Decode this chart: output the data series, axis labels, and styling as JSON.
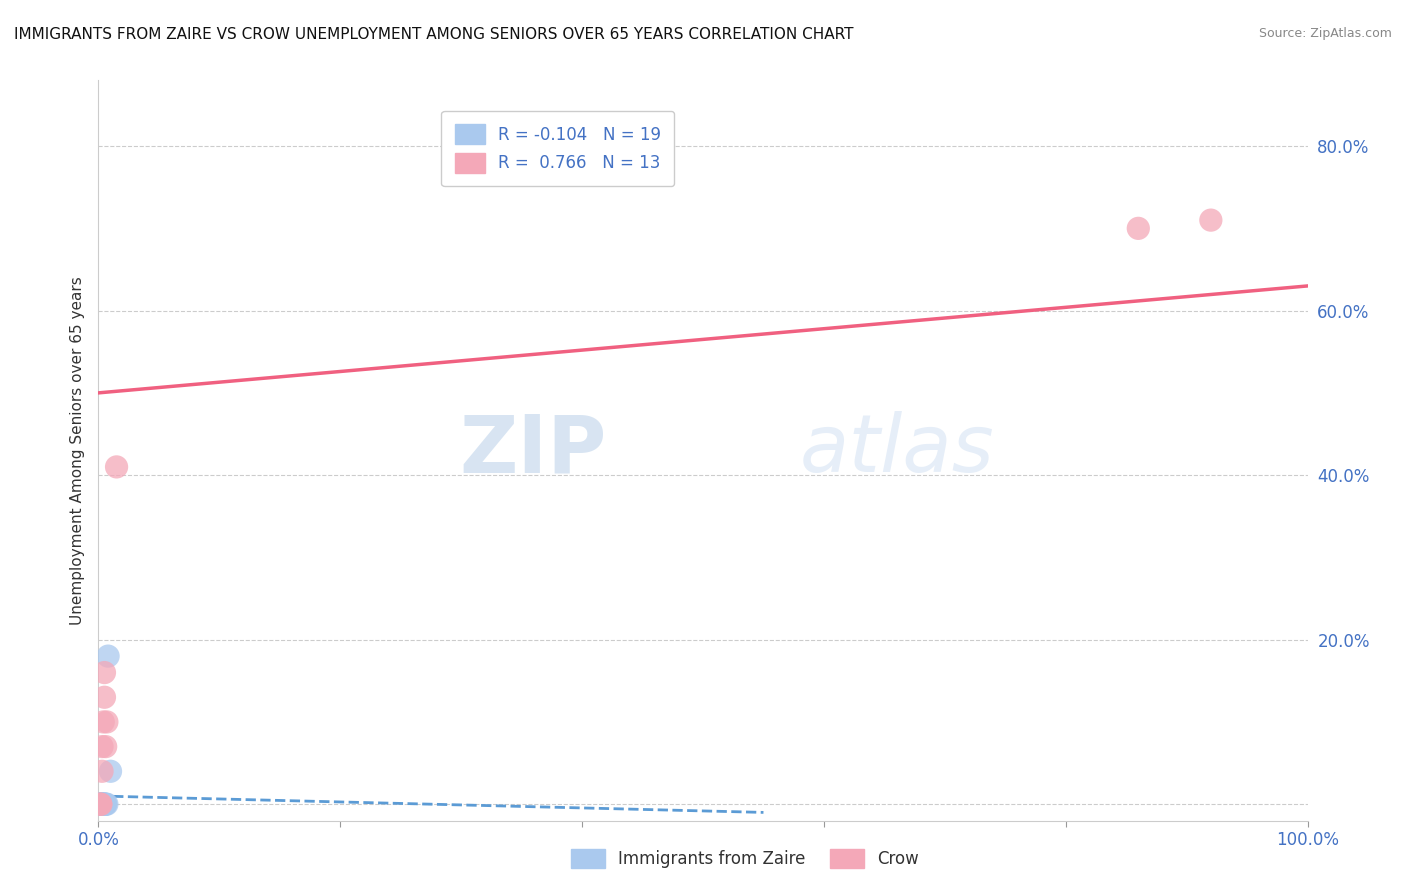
{
  "title": "IMMIGRANTS FROM ZAIRE VS CROW UNEMPLOYMENT AMONG SENIORS OVER 65 YEARS CORRELATION CHART",
  "source": "Source: ZipAtlas.com",
  "ylabel": "Unemployment Among Seniors over 65 years",
  "xlim": [
    0.0,
    1.0
  ],
  "ylim": [
    -0.02,
    0.88
  ],
  "xticks": [
    0.0,
    0.2,
    0.4,
    0.6,
    0.8,
    1.0
  ],
  "yticks": [
    0.0,
    0.2,
    0.4,
    0.6,
    0.8
  ],
  "xticklabels": [
    "0.0%",
    "",
    "",
    "",
    "",
    "100.0%"
  ],
  "yticklabels": [
    "",
    "20.0%",
    "40.0%",
    "60.0%",
    "80.0%"
  ],
  "blue_points_x": [
    0.001,
    0.001,
    0.001,
    0.002,
    0.002,
    0.002,
    0.003,
    0.003,
    0.003,
    0.004,
    0.004,
    0.005,
    0.005,
    0.005,
    0.006,
    0.006,
    0.007,
    0.008,
    0.01
  ],
  "blue_points_y": [
    0.0,
    0.0,
    0.0,
    0.0,
    0.0,
    0.0,
    0.0,
    0.0,
    0.0,
    0.0,
    0.0,
    0.0,
    0.0,
    0.0,
    0.0,
    0.0,
    0.0,
    0.18,
    0.04
  ],
  "pink_points_x": [
    0.001,
    0.002,
    0.002,
    0.003,
    0.003,
    0.004,
    0.005,
    0.005,
    0.006,
    0.007,
    0.015,
    0.86,
    0.92
  ],
  "pink_points_y": [
    0.0,
    0.0,
    0.0,
    0.04,
    0.07,
    0.1,
    0.13,
    0.16,
    0.07,
    0.1,
    0.41,
    0.7,
    0.71
  ],
  "blue_color": "#aac9ee",
  "pink_color": "#f4a8b8",
  "blue_line_color": "#5b9bd5",
  "pink_line_color": "#f06080",
  "R_blue": -0.104,
  "N_blue": 19,
  "R_pink": 0.766,
  "N_pink": 13,
  "legend1_label": "Immigrants from Zaire",
  "legend2_label": "Crow",
  "watermark_zip": "ZIP",
  "watermark_atlas": "atlas",
  "background_color": "#ffffff",
  "grid_color": "#cccccc",
  "pink_line_x": [
    0.0,
    1.0
  ],
  "pink_line_y": [
    0.5,
    0.63
  ],
  "blue_line_x": [
    0.0,
    0.55
  ],
  "blue_line_y": [
    0.01,
    -0.01
  ]
}
